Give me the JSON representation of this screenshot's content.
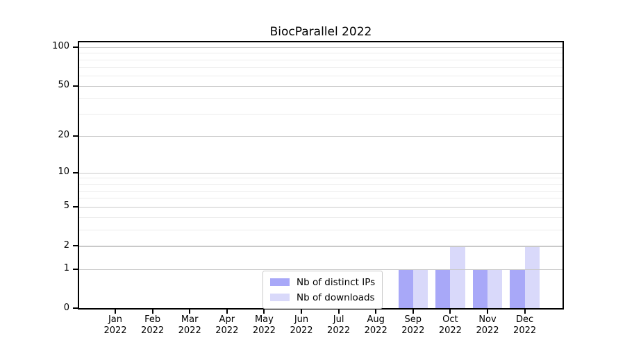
{
  "figure": {
    "title": "BiocParallel 2022"
  },
  "chart_data": {
    "type": "bar",
    "title": "BiocParallel 2022",
    "categories": [
      "Jan 2022",
      "Feb 2022",
      "Mar 2022",
      "Apr 2022",
      "May 2022",
      "Jun 2022",
      "Jul 2022",
      "Aug 2022",
      "Sep 2022",
      "Oct 2022",
      "Nov 2022",
      "Dec 2022"
    ],
    "series": [
      {
        "name": "Nb of distinct IPs",
        "color": "#a8a8f8",
        "values": [
          0,
          0,
          0,
          0,
          0,
          0,
          0,
          0,
          1,
          1,
          1,
          1
        ]
      },
      {
        "name": "Nb of downloads",
        "color": "#d9d9fa",
        "values": [
          0,
          0,
          0,
          0,
          0,
          0,
          0,
          0,
          1,
          2,
          1,
          2
        ]
      }
    ],
    "xlabel": "",
    "ylabel": "",
    "yscale": "log1p",
    "ylim": [
      0,
      110
    ],
    "y_major_ticks": [
      0,
      1,
      2,
      5,
      10,
      20,
      50,
      100
    ],
    "y_minor_ticks": [
      3,
      4,
      6,
      7,
      8,
      9,
      30,
      40,
      60,
      70,
      80,
      90
    ],
    "grid": "horizontal major+minor",
    "legend_position": "lower center (inside axes)"
  },
  "colors": {
    "major_grid": "#c9c9c9",
    "minor_grid": "#ececec",
    "spine": "#000000",
    "legend_border": "#c9c9c9"
  }
}
